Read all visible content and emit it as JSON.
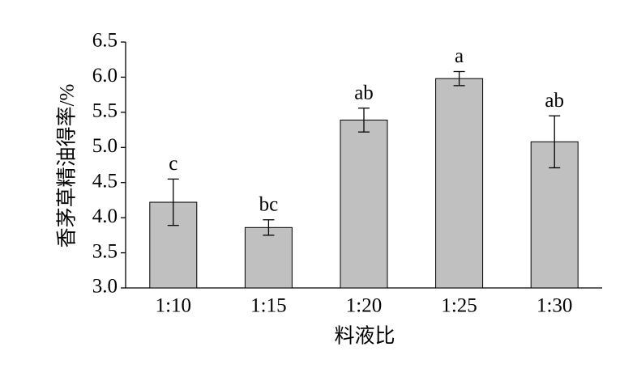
{
  "chart_data": {
    "type": "bar",
    "y_label": "香茅草精油得率/%",
    "x_label": "料液比",
    "categories": [
      "1:10",
      "1:15",
      "1:20",
      "1:25",
      "1:30"
    ],
    "values": [
      4.22,
      3.86,
      5.39,
      5.98,
      5.08
    ],
    "errors": [
      0.33,
      0.11,
      0.17,
      0.1,
      0.37
    ],
    "significance_labels": [
      "c",
      "bc",
      "ab",
      "a",
      "ab"
    ],
    "color": "#c0c0c0",
    "ylim": [
      3.0,
      6.5
    ],
    "yticks": [
      {
        "value": 3.0,
        "label": "3.0"
      },
      3.5,
      {
        "value": 4.0,
        "label": "4.0"
      },
      4.5,
      {
        "value": 5.0,
        "label": "5.0"
      },
      5.5,
      {
        "value": 6.0,
        "label": "6.0"
      },
      6.5
    ],
    "grid": false
  }
}
